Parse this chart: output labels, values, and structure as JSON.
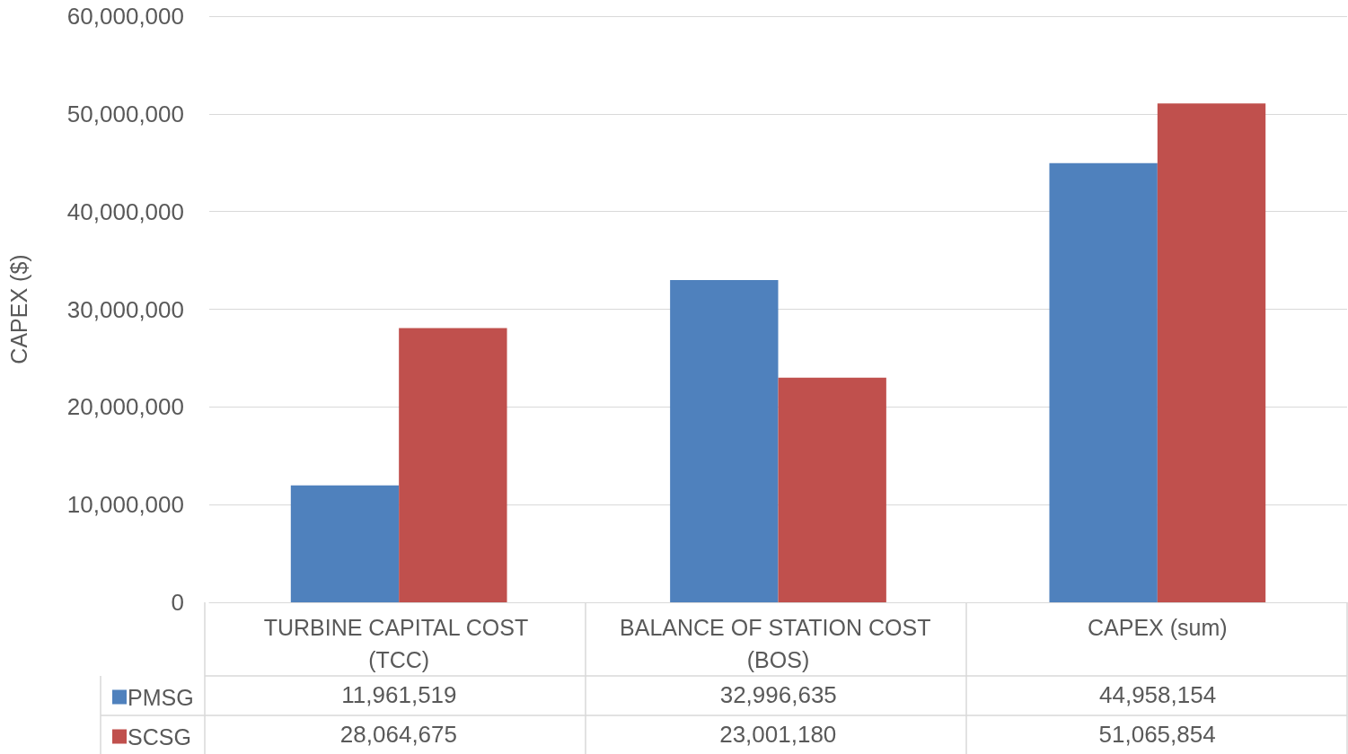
{
  "chart_data": {
    "type": "bar",
    "ylabel": "CAPEX ($)",
    "categories": [
      "TURBINE CAPITAL COST (TCC)",
      "BALANCE OF STATION COST (BOS)",
      "CAPEX (sum)"
    ],
    "series": [
      {
        "name": "PMSG",
        "color": "#4f81bd",
        "values": [
          11961519,
          32996635,
          44958154
        ],
        "value_labels": [
          "11,961,519",
          "32,996,635",
          "44,958,154"
        ]
      },
      {
        "name": "SCSG",
        "color": "#c0504d",
        "values": [
          28064675,
          23001180,
          51065854
        ],
        "value_labels": [
          "28,064,675",
          "23,001,180",
          "51,065,854"
        ]
      }
    ],
    "ylim": [
      0,
      60000000
    ],
    "yticks": [
      0,
      {
        "value": 10000000,
        "label": "10,000,000"
      },
      {
        "value": 20000000,
        "label": "20,000,000"
      },
      {
        "value": 30000000,
        "label": "30,000,000"
      },
      {
        "value": 40000000,
        "label": "40,000,000"
      },
      {
        "value": 50000000,
        "label": "50,000,000"
      },
      {
        "value": 60000000,
        "label": "60,000,000"
      }
    ],
    "grid": true,
    "legend": "bottom left"
  }
}
